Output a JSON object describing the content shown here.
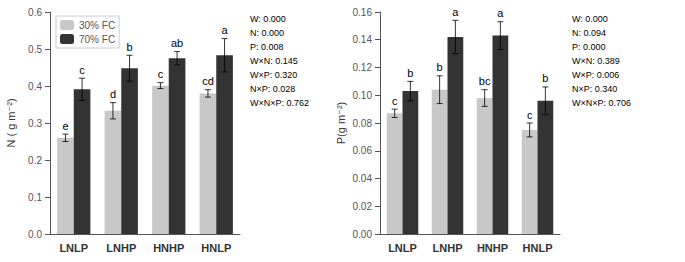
{
  "chart_data": [
    {
      "type": "bar",
      "categories": [
        "LNLP",
        "LNHP",
        "HNHP",
        "HNLP"
      ],
      "ylabel": "N ( g m⁻²)",
      "ylim": [
        0.0,
        0.6
      ],
      "yticks": [
        {
          "value": 0.0,
          "label": "0.0"
        },
        0.1,
        0.2,
        0.3,
        0.4,
        0.5,
        0.6
      ],
      "grid": false,
      "legend": "upper left",
      "series": [
        {
          "name": "30% FC",
          "color": "#c8c8c8",
          "values": [
            0.26,
            0.333,
            0.401,
            0.38
          ],
          "errors": [
            0.01,
            0.022,
            0.008,
            0.01
          ],
          "annotations": [
            "e",
            "d",
            "c",
            "cd"
          ]
        },
        {
          "name": "70% FC",
          "color": "#333333",
          "values": [
            0.391,
            0.448,
            0.475,
            0.483
          ],
          "errors": [
            0.03,
            0.035,
            0.018,
            0.045
          ],
          "annotations": [
            "c",
            "b",
            "ab",
            "a"
          ]
        }
      ],
      "annotations": [
        "W: 0.000",
        "N: 0.000",
        "P: 0.008",
        "W×N: 0.145",
        "W×P: 0.320",
        "N×P: 0.028",
        "W×N×P: 0.762"
      ]
    },
    {
      "type": "bar",
      "categories": [
        "LNLP",
        "LNHP",
        "HNHP",
        "HNLP"
      ],
      "ylabel": "P(g m⁻²)",
      "ylim": [
        0.0,
        0.16
      ],
      "yticks": [
        {
          "value": 0.0,
          "label": "0.00"
        },
        0.02,
        0.04,
        0.06,
        0.08,
        {
          "value": 0.1,
          "label": "0.10"
        },
        0.12,
        0.14,
        0.16
      ],
      "grid": false,
      "series": [
        {
          "name": "30% FC",
          "color": "#c8c8c8",
          "values": [
            0.087,
            0.104,
            0.098,
            0.075
          ],
          "errors": [
            0.003,
            0.01,
            0.006,
            0.005
          ],
          "annotations": [
            "c",
            "b",
            "bc",
            "c"
          ]
        },
        {
          "name": "70% FC",
          "color": "#333333",
          "values": [
            0.103,
            0.142,
            0.143,
            0.096
          ],
          "errors": [
            0.007,
            0.012,
            0.01,
            0.01
          ],
          "annotations": [
            "b",
            "a",
            "a",
            "b"
          ]
        }
      ],
      "annotations": [
        "W: 0.000",
        "N: 0.094",
        "P: 0.000",
        "W×N: 0.389",
        "W×P: 0.006",
        "N×P: 0.340",
        "W×N×P: 0.706"
      ]
    }
  ]
}
